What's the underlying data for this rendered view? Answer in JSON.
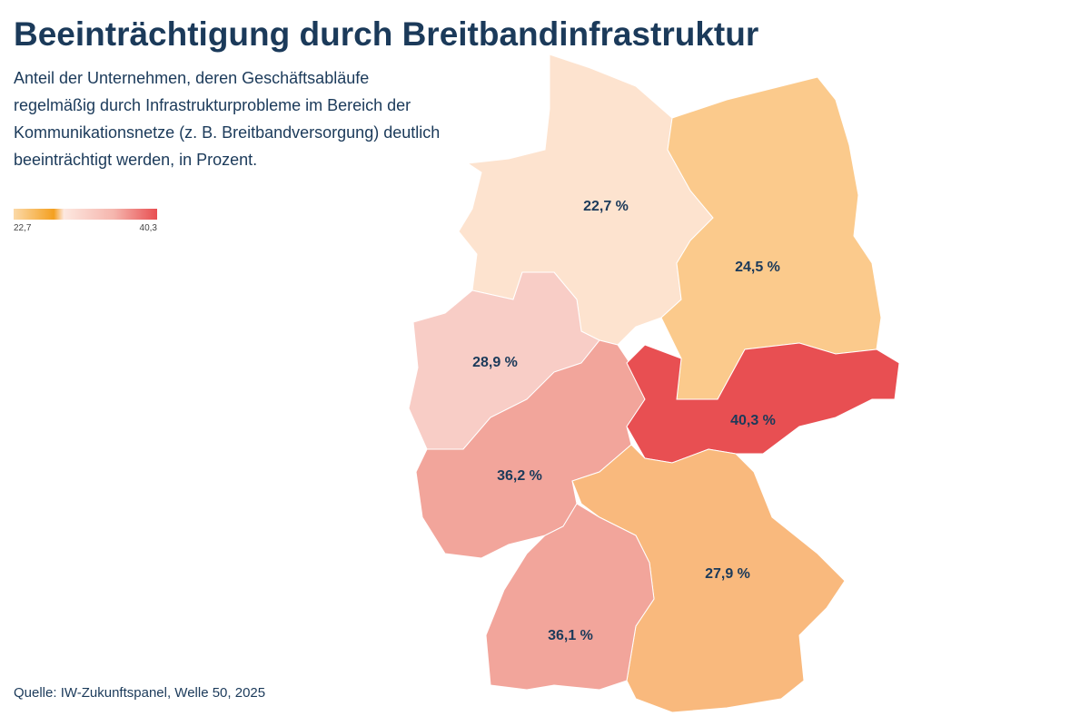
{
  "title": "Beeinträchtigung durch Breitbandinfrastruktur",
  "subtitle": [
    "Anteil der Unternehmen, deren Geschäftsabläufe",
    "regelmäßig durch Infrastrukturprobleme im Bereich der",
    "Kommunikationsnetze (z. B. Breitbandversorgung) deutlich",
    "beeinträchtigt werden, in Prozent."
  ],
  "legend": {
    "min": {
      "value": 22.7,
      "label": "22,7"
    },
    "max": {
      "value": 40.3,
      "label": "40,3"
    }
  },
  "regions": [
    {
      "value": 22.7,
      "label": "22,7 %",
      "color": "#fde3cf"
    },
    {
      "value": 24.5,
      "label": "24,5 %",
      "color": "#fbca8c"
    },
    {
      "value": 28.9,
      "label": "28,9 %",
      "color": "#f8cdc6"
    },
    {
      "value": 36.2,
      "label": "36,2 %",
      "color": "#f2a59b"
    },
    {
      "value": 40.3,
      "label": "40,3 %",
      "color": "#e84f52"
    },
    {
      "value": 27.9,
      "label": "27,9 %",
      "color": "#f9b97d"
    },
    {
      "value": 36.1,
      "label": "36,1 %",
      "color": "#f2a59b"
    }
  ],
  "source": "Quelle: IW-Zukunftspanel, Welle 50, 2025"
}
